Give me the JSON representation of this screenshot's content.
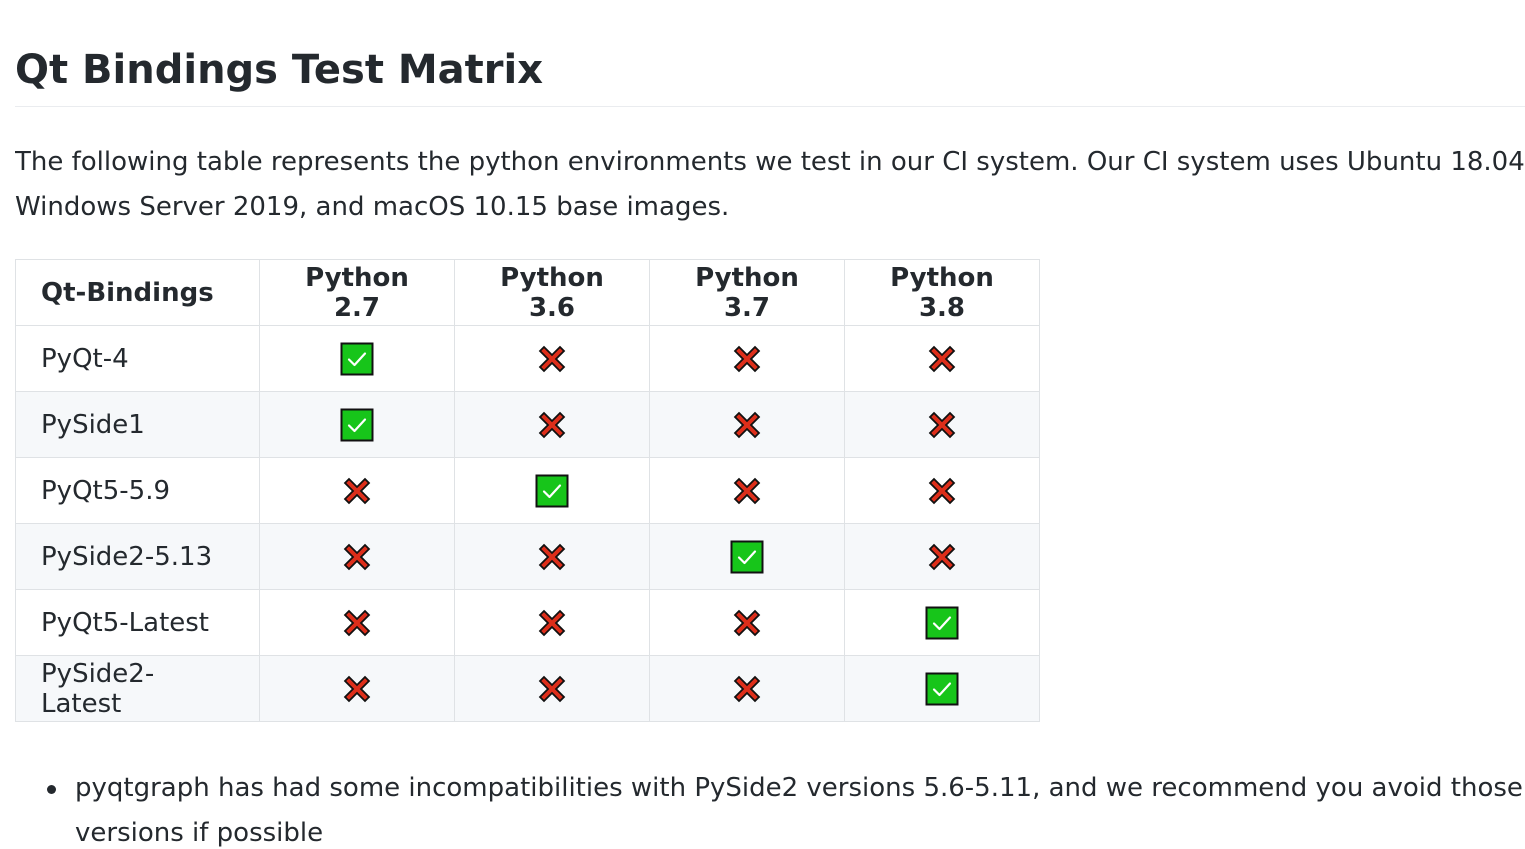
{
  "heading": "Qt Bindings Test Matrix",
  "intro": {
    "line1": "The following table represents the python environments we test in our CI system. Our CI system uses Ubuntu 18.04,",
    "line2": "Windows Server 2019, and macOS 10.15 base images."
  },
  "table": {
    "headers": [
      "Qt-Bindings",
      "Python 2.7",
      "Python 3.6",
      "Python 3.7",
      "Python 3.8"
    ],
    "rows": [
      {
        "name": "PyQt-4",
        "cells": [
          "check",
          "cross",
          "cross",
          "cross"
        ]
      },
      {
        "name": "PySide1",
        "cells": [
          "check",
          "cross",
          "cross",
          "cross"
        ]
      },
      {
        "name": "PyQt5-5.9",
        "cells": [
          "cross",
          "check",
          "cross",
          "cross"
        ]
      },
      {
        "name": "PySide2-5.13",
        "cells": [
          "cross",
          "cross",
          "check",
          "cross"
        ]
      },
      {
        "name": "PyQt5-Latest",
        "cells": [
          "cross",
          "cross",
          "cross",
          "check"
        ]
      },
      {
        "name": "PySide2-Latest",
        "cells": [
          "cross",
          "cross",
          "cross",
          "check"
        ]
      }
    ]
  },
  "icons": {
    "check": "white-check-mark-icon",
    "cross": "cross-mark-icon"
  },
  "colors": {
    "check_bg": "#17c51a",
    "cross": "#dd2e1a",
    "text": "#24292e",
    "border": "#dfe2e5",
    "alt_row": "#f6f8fa"
  },
  "notes": {
    "line1": "pyqtgraph has had some incompatibilities with PySide2 versions 5.6-5.11, and we recommend you avoid those",
    "line2": "versions if possible"
  }
}
